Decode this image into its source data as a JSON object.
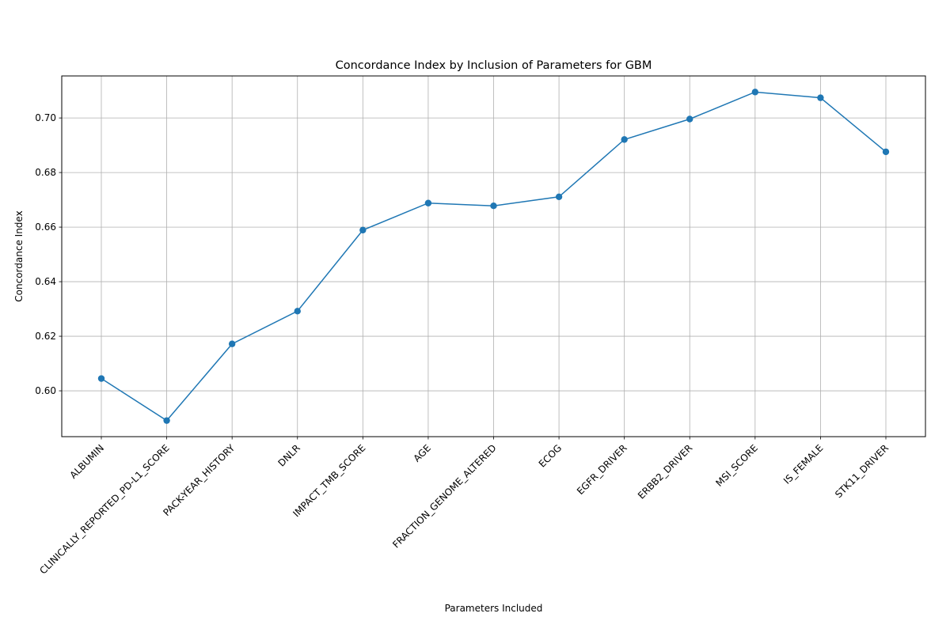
{
  "chart_data": {
    "type": "line",
    "title": "Concordance Index by Inclusion of Parameters for GBM",
    "xlabel": "Parameters Included",
    "ylabel": "Concordance Index",
    "categories": [
      "ALBUMIN",
      "CLINICALLY_REPORTED_PD-L1_SCORE",
      "PACK-YEAR_HISTORY",
      "DNLR",
      "IMPACT_TMB_SCORE",
      "AGE",
      "FRACTION_GENOME_ALTERED",
      "ECOG",
      "EGFR_DRIVER",
      "ERBB2_DRIVER",
      "MSI_SCORE",
      "IS_FEMALE",
      "STK11_DRIVER"
    ],
    "series": [
      {
        "values": [
          0.6045,
          0.5891,
          0.6172,
          0.6292,
          0.6589,
          0.6688,
          0.6678,
          0.6711,
          0.6921,
          0.6996,
          0.7095,
          0.7074,
          0.6876
        ]
      }
    ],
    "ylim": [
      0.5832,
      0.7154
    ],
    "yticks": [
      "0.60",
      "0.62",
      "0.64",
      "0.66",
      "0.68",
      "0.70"
    ],
    "ytick_values": [
      0.6,
      0.62,
      0.64,
      0.66,
      0.68,
      0.7
    ],
    "grid": true,
    "legend": "none",
    "colors": {
      "line": "#1f77b4",
      "marker": "#1f77b4",
      "grid": "#b0b0b0",
      "axes": "#000000"
    }
  }
}
